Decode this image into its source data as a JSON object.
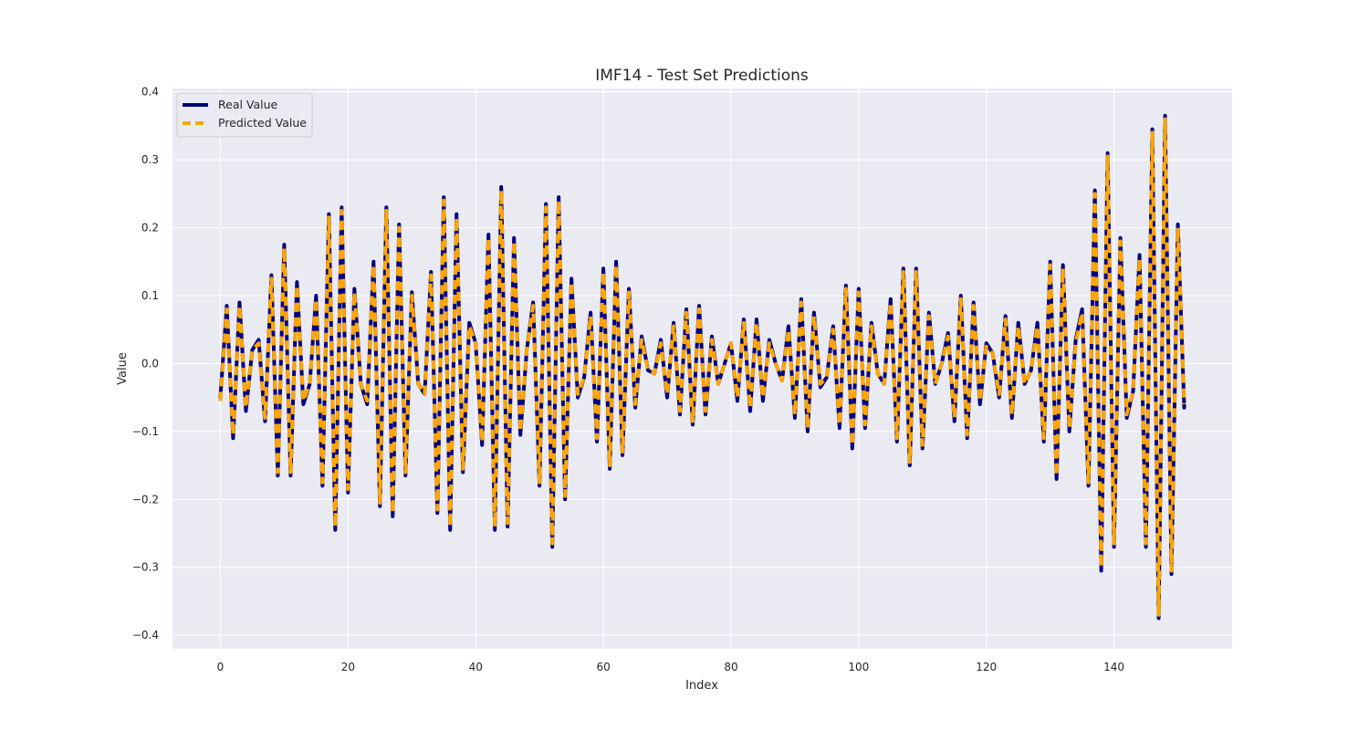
{
  "chart_data": {
    "type": "line",
    "title": "IMF14 - Test Set Predictions",
    "xlabel": "Index",
    "ylabel": "Value",
    "xlim": [
      -7.5,
      158.5
    ],
    "ylim": [
      -0.42,
      0.405
    ],
    "xticks": [
      0,
      20,
      40,
      60,
      80,
      100,
      120,
      140
    ],
    "yticks": [
      -0.4,
      -0.3,
      -0.2,
      -0.1,
      0.0,
      0.1,
      0.2,
      0.3,
      0.4
    ],
    "ytick_labels": [
      "−0.4",
      "−0.3",
      "−0.2",
      "−0.1",
      "0.0",
      "0.1",
      "0.2",
      "0.3",
      "0.4"
    ],
    "grid": true,
    "background": "#eaeaf2",
    "legend_position": "upper-left",
    "x": [
      0,
      1,
      2,
      3,
      4,
      5,
      6,
      7,
      8,
      9,
      10,
      11,
      12,
      13,
      14,
      15,
      16,
      17,
      18,
      19,
      20,
      21,
      22,
      23,
      24,
      25,
      26,
      27,
      28,
      29,
      30,
      31,
      32,
      33,
      34,
      35,
      36,
      37,
      38,
      39,
      40,
      41,
      42,
      43,
      44,
      45,
      46,
      47,
      48,
      49,
      50,
      51,
      52,
      53,
      54,
      55,
      56,
      57,
      58,
      59,
      60,
      61,
      62,
      63,
      64,
      65,
      66,
      67,
      68,
      69,
      70,
      71,
      72,
      73,
      74,
      75,
      76,
      77,
      78,
      79,
      80,
      81,
      82,
      83,
      84,
      85,
      86,
      87,
      88,
      89,
      90,
      91,
      92,
      93,
      94,
      95,
      96,
      97,
      98,
      99,
      100,
      101,
      102,
      103,
      104,
      105,
      106,
      107,
      108,
      109,
      110,
      111,
      112,
      113,
      114,
      115,
      116,
      117,
      118,
      119,
      120,
      121,
      122,
      123,
      124,
      125,
      126,
      127,
      128,
      129,
      130,
      131,
      132,
      133,
      134,
      135,
      136,
      137,
      138,
      139,
      140,
      141,
      142,
      143,
      144,
      145,
      146,
      147,
      148,
      149,
      150,
      151
    ],
    "series": [
      {
        "name": "Real Value",
        "color": "#000080",
        "style": "solid",
        "values": [
          -0.05,
          0.085,
          -0.11,
          0.09,
          -0.07,
          0.02,
          0.035,
          -0.085,
          0.13,
          -0.165,
          0.175,
          -0.165,
          0.12,
          -0.06,
          -0.03,
          0.1,
          -0.18,
          0.22,
          -0.245,
          0.23,
          -0.19,
          0.11,
          -0.03,
          -0.06,
          0.15,
          -0.21,
          0.23,
          -0.225,
          0.205,
          -0.165,
          0.105,
          -0.03,
          -0.045,
          0.135,
          -0.22,
          0.245,
          -0.245,
          0.22,
          -0.16,
          0.06,
          0.03,
          -0.12,
          0.19,
          -0.245,
          0.26,
          -0.24,
          0.185,
          -0.105,
          0.02,
          0.09,
          -0.18,
          0.235,
          -0.27,
          0.245,
          -0.2,
          0.125,
          -0.05,
          -0.02,
          0.075,
          -0.115,
          0.14,
          -0.155,
          0.15,
          -0.135,
          0.11,
          -0.065,
          0.04,
          -0.01,
          -0.015,
          0.035,
          -0.05,
          0.06,
          -0.075,
          0.08,
          -0.09,
          0.085,
          -0.075,
          0.04,
          -0.03,
          0.0,
          0.03,
          -0.055,
          0.065,
          -0.07,
          0.065,
          -0.055,
          0.035,
          0.0,
          -0.025,
          0.055,
          -0.08,
          0.095,
          -0.1,
          0.075,
          -0.035,
          -0.02,
          0.055,
          -0.095,
          0.115,
          -0.125,
          0.11,
          -0.095,
          0.06,
          -0.015,
          -0.03,
          0.095,
          -0.115,
          0.14,
          -0.15,
          0.14,
          -0.125,
          0.075,
          -0.03,
          0.0,
          0.045,
          -0.085,
          0.1,
          -0.11,
          0.09,
          -0.06,
          0.03,
          0.015,
          -0.05,
          0.07,
          -0.08,
          0.06,
          -0.03,
          -0.01,
          0.06,
          -0.115,
          0.15,
          -0.17,
          0.145,
          -0.1,
          0.035,
          0.08,
          -0.18,
          0.255,
          -0.305,
          0.31,
          -0.27,
          0.185,
          -0.08,
          -0.04,
          0.16,
          -0.27,
          0.345,
          -0.375,
          0.365,
          -0.31,
          0.205,
          -0.065
        ]
      },
      {
        "name": "Predicted Value",
        "color": "#ffa500",
        "style": "dashed",
        "values": [
          -0.055,
          0.08,
          -0.105,
          0.085,
          -0.065,
          0.02,
          0.03,
          -0.08,
          0.125,
          -0.16,
          0.17,
          -0.16,
          0.115,
          -0.055,
          -0.03,
          0.095,
          -0.175,
          0.215,
          -0.24,
          0.225,
          -0.185,
          0.105,
          -0.03,
          -0.055,
          0.145,
          -0.205,
          0.225,
          -0.22,
          0.2,
          -0.16,
          0.1,
          -0.03,
          -0.045,
          0.13,
          -0.215,
          0.24,
          -0.24,
          0.215,
          -0.155,
          0.055,
          0.03,
          -0.115,
          0.185,
          -0.24,
          0.255,
          -0.235,
          0.18,
          -0.1,
          0.02,
          0.085,
          -0.175,
          0.23,
          -0.265,
          0.24,
          -0.195,
          0.12,
          -0.045,
          -0.02,
          0.07,
          -0.11,
          0.135,
          -0.15,
          0.145,
          -0.13,
          0.105,
          -0.06,
          0.035,
          -0.01,
          -0.015,
          0.03,
          -0.045,
          0.055,
          -0.07,
          0.075,
          -0.085,
          0.08,
          -0.07,
          0.035,
          -0.03,
          0.0,
          0.03,
          -0.05,
          0.06,
          -0.065,
          0.06,
          -0.05,
          0.03,
          0.0,
          -0.025,
          0.05,
          -0.075,
          0.09,
          -0.095,
          0.07,
          -0.03,
          -0.02,
          0.05,
          -0.09,
          0.11,
          -0.12,
          0.105,
          -0.09,
          0.055,
          -0.015,
          -0.03,
          0.09,
          -0.11,
          0.135,
          -0.145,
          0.135,
          -0.12,
          0.07,
          -0.03,
          0.0,
          0.04,
          -0.08,
          0.095,
          -0.105,
          0.085,
          -0.055,
          0.025,
          0.015,
          -0.045,
          0.065,
          -0.075,
          0.055,
          -0.03,
          -0.01,
          0.055,
          -0.11,
          0.145,
          -0.165,
          0.14,
          -0.095,
          0.03,
          0.075,
          -0.175,
          0.25,
          -0.3,
          0.305,
          -0.265,
          0.18,
          -0.075,
          -0.04,
          0.155,
          -0.265,
          0.34,
          -0.37,
          0.36,
          -0.305,
          0.2,
          -0.06
        ]
      }
    ]
  }
}
